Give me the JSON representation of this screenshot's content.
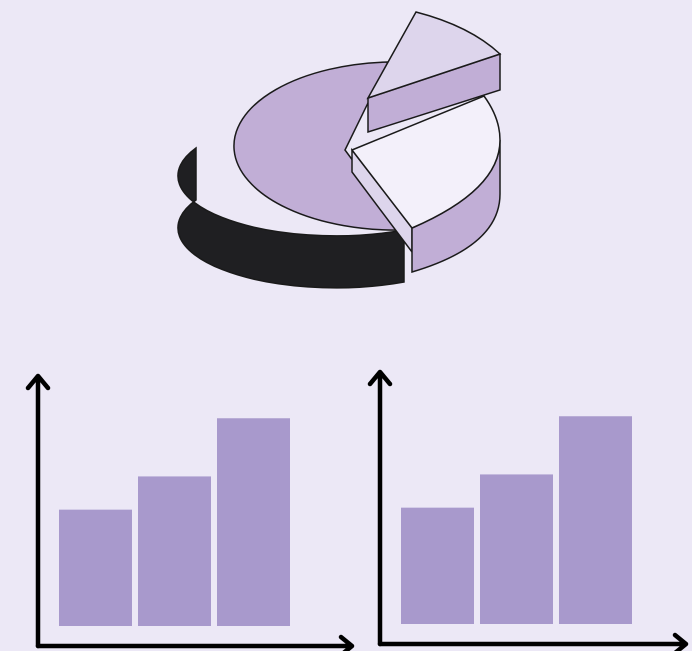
{
  "colors": {
    "background": "#ece8f6",
    "pie_main": "#c1aed6",
    "pie_side_dark": "#1f1f22",
    "pie_slice_light": "#ddd5ec",
    "pie_slice_white": "#f3f0fa",
    "bar_fill": "#a899cc",
    "axis": "#000000",
    "outline": "#1a1a1a"
  },
  "chart_data": [
    {
      "type": "pie",
      "title": "",
      "slices": [
        {
          "value": 63,
          "color": "#c1aed6",
          "exploded": false
        },
        {
          "value": 12,
          "color": "#ddd5ec",
          "exploded": true
        },
        {
          "value": 25,
          "color": "#f3f0fa",
          "exploded": true
        }
      ],
      "style": "3d-exploded"
    },
    {
      "type": "bar",
      "title": "",
      "xlabel": "",
      "ylabel": "",
      "values": [
        42,
        54,
        75
      ],
      "ylim": [
        0,
        100
      ],
      "grid": false
    },
    {
      "type": "bar",
      "title": "",
      "xlabel": "",
      "ylabel": "",
      "values": [
        42,
        54,
        75
      ],
      "ylim": [
        0,
        100
      ],
      "grid": false
    }
  ]
}
